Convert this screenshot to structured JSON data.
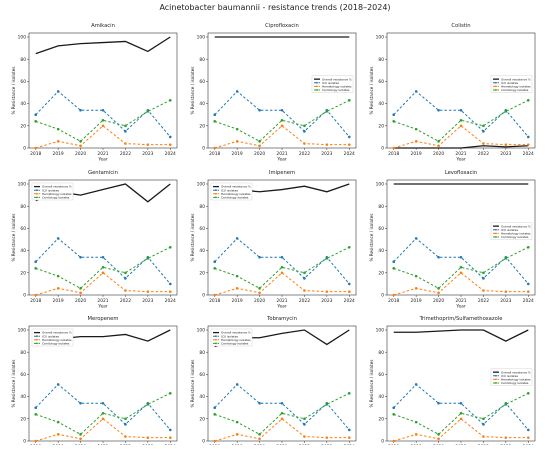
{
  "figure_title": "Acinetobacter baumannii - resistance trends (2018–2024)",
  "colors": {
    "overall": "#1a1a1a",
    "icu": "#1f77b4",
    "hematology": "#ff7f0e",
    "cardiology": "#2ca02c"
  },
  "chart_data": [
    {
      "type": "line",
      "title": "Amikacin",
      "xlabel": "Year",
      "ylabel": "% Resistance / isolates",
      "x": [
        2018,
        2019,
        2020,
        2021,
        2022,
        2023,
        2024
      ],
      "ylim": [
        0,
        100
      ],
      "yticks": [
        0,
        20,
        40,
        60,
        80,
        100
      ],
      "legend": "none",
      "series": [
        {
          "name": "Overall resistance %",
          "values": [
            85,
            92,
            94,
            95,
            96,
            87,
            100
          ]
        },
        {
          "name": "ICU isolates",
          "values": [
            30,
            51,
            34,
            34,
            15,
            34,
            10
          ]
        },
        {
          "name": "Hematology isolates",
          "values": [
            0,
            6,
            2,
            20,
            4,
            3,
            3
          ]
        },
        {
          "name": "Cardiology isolates",
          "values": [
            24,
            17,
            6,
            25,
            20,
            33,
            43
          ]
        }
      ]
    },
    {
      "type": "line",
      "title": "Ciprofloxacin",
      "xlabel": "Year",
      "ylabel": "% Resistance / isolates",
      "x": [
        2018,
        2019,
        2020,
        2021,
        2022,
        2023,
        2024
      ],
      "ylim": [
        0,
        100
      ],
      "yticks": [
        0,
        20,
        40,
        60,
        80,
        100
      ],
      "legend": "center-right",
      "series": [
        {
          "name": "Overall resistance %",
          "values": [
            100,
            100,
            100,
            100,
            100,
            100,
            100
          ]
        },
        {
          "name": "ICU isolates",
          "values": [
            30,
            51,
            34,
            34,
            15,
            34,
            10
          ]
        },
        {
          "name": "Hematology isolates",
          "values": [
            0,
            6,
            2,
            20,
            4,
            3,
            3
          ]
        },
        {
          "name": "Cardiology isolates",
          "values": [
            24,
            17,
            6,
            25,
            20,
            33,
            43
          ]
        }
      ]
    },
    {
      "type": "line",
      "title": "Colistin",
      "xlabel": "Year",
      "ylabel": "% Resistance / isolates",
      "x": [
        2018,
        2019,
        2020,
        2021,
        2022,
        2023,
        2024
      ],
      "ylim": [
        0,
        100
      ],
      "yticks": [
        0,
        20,
        40,
        60,
        80,
        100
      ],
      "legend": "center-right",
      "series": [
        {
          "name": "Overall resistance %",
          "values": [
            0,
            0,
            0,
            0,
            2,
            1,
            2
          ]
        },
        {
          "name": "ICU isolates",
          "values": [
            30,
            51,
            34,
            34,
            15,
            34,
            10
          ]
        },
        {
          "name": "Hematology isolates",
          "values": [
            0,
            6,
            2,
            20,
            4,
            3,
            3
          ]
        },
        {
          "name": "Cardiology isolates",
          "values": [
            24,
            17,
            6,
            25,
            20,
            33,
            43
          ]
        }
      ]
    },
    {
      "type": "line",
      "title": "Gentamicin",
      "xlabel": "Year",
      "ylabel": "% Resistance / isolates",
      "x": [
        2018,
        2019,
        2020,
        2021,
        2022,
        2023,
        2024
      ],
      "ylim": [
        0,
        100
      ],
      "yticks": [
        0,
        20,
        40,
        60,
        80,
        100
      ],
      "legend": "upper-left",
      "series": [
        {
          "name": "Overall resistance %",
          "values": [
            85,
            93,
            90,
            95,
            100,
            84,
            100
          ]
        },
        {
          "name": "ICU isolates",
          "values": [
            30,
            51,
            34,
            34,
            15,
            34,
            10
          ]
        },
        {
          "name": "Hematology isolates",
          "values": [
            0,
            6,
            2,
            20,
            4,
            3,
            3
          ]
        },
        {
          "name": "Cardiology isolates",
          "values": [
            24,
            17,
            6,
            25,
            20,
            33,
            43
          ]
        }
      ]
    },
    {
      "type": "line",
      "title": "Imipenem",
      "xlabel": "Year",
      "ylabel": "% Resistance / isolates",
      "x": [
        2018,
        2019,
        2020,
        2021,
        2022,
        2023,
        2024
      ],
      "ylim": [
        0,
        100
      ],
      "yticks": [
        0,
        20,
        40,
        60,
        80,
        100
      ],
      "legend": "upper-left",
      "series": [
        {
          "name": "Overall resistance %",
          "values": [
            93,
            95,
            93,
            95,
            98,
            93,
            100
          ]
        },
        {
          "name": "ICU isolates",
          "values": [
            30,
            51,
            34,
            34,
            15,
            34,
            10
          ]
        },
        {
          "name": "Hematology isolates",
          "values": [
            0,
            6,
            2,
            20,
            4,
            3,
            3
          ]
        },
        {
          "name": "Cardiology isolates",
          "values": [
            24,
            17,
            6,
            25,
            20,
            33,
            43
          ]
        }
      ]
    },
    {
      "type": "line",
      "title": "Levofloxacin",
      "xlabel": "Year",
      "ylabel": "% Resistance / isolates",
      "x": [
        2018,
        2019,
        2020,
        2021,
        2022,
        2023,
        2024
      ],
      "ylim": [
        0,
        100
      ],
      "yticks": [
        0,
        20,
        40,
        60,
        80,
        100
      ],
      "legend": "center-right",
      "series": [
        {
          "name": "Overall resistance %",
          "values": [
            100,
            100,
            100,
            100,
            100,
            100,
            100
          ]
        },
        {
          "name": "ICU isolates",
          "values": [
            30,
            51,
            34,
            34,
            15,
            34,
            10
          ]
        },
        {
          "name": "Hematology isolates",
          "values": [
            0,
            6,
            2,
            20,
            4,
            3,
            3
          ]
        },
        {
          "name": "Cardiology isolates",
          "values": [
            24,
            17,
            6,
            25,
            20,
            33,
            43
          ]
        }
      ]
    },
    {
      "type": "line",
      "title": "Meropenem",
      "xlabel": "Year",
      "ylabel": "% Resistance / isolates",
      "x": [
        2018,
        2019,
        2020,
        2021,
        2022,
        2023,
        2024
      ],
      "ylim": [
        0,
        100
      ],
      "yticks": [
        0,
        20,
        40,
        60,
        80,
        100
      ],
      "legend": "upper-left",
      "series": [
        {
          "name": "Overall resistance %",
          "values": [
            93,
            92,
            94,
            94,
            96,
            90,
            100
          ]
        },
        {
          "name": "ICU isolates",
          "values": [
            30,
            51,
            34,
            34,
            15,
            34,
            10
          ]
        },
        {
          "name": "Hematology isolates",
          "values": [
            0,
            6,
            2,
            20,
            4,
            3,
            3
          ]
        },
        {
          "name": "Cardiology isolates",
          "values": [
            24,
            17,
            6,
            25,
            20,
            33,
            43
          ]
        }
      ]
    },
    {
      "type": "line",
      "title": "Tobramycin",
      "xlabel": "Year",
      "ylabel": "% Resistance / isolates",
      "x": [
        2018,
        2019,
        2020,
        2021,
        2022,
        2023,
        2024
      ],
      "ylim": [
        0,
        100
      ],
      "yticks": [
        0,
        20,
        40,
        60,
        80,
        100
      ],
      "legend": "upper-left",
      "series": [
        {
          "name": "Overall resistance %",
          "values": [
            85,
            93,
            93,
            97,
            100,
            87,
            100
          ]
        },
        {
          "name": "ICU isolates",
          "values": [
            30,
            51,
            34,
            34,
            15,
            34,
            10
          ]
        },
        {
          "name": "Hematology isolates",
          "values": [
            0,
            6,
            2,
            20,
            4,
            3,
            3
          ]
        },
        {
          "name": "Cardiology isolates",
          "values": [
            24,
            17,
            6,
            25,
            20,
            33,
            43
          ]
        }
      ]
    },
    {
      "type": "line",
      "title": "Trimethoprim/Sulfamethoxazole",
      "xlabel": "Year",
      "ylabel": "% Resistance / isolates",
      "x": [
        2018,
        2019,
        2020,
        2021,
        2022,
        2023,
        2024
      ],
      "ylim": [
        0,
        100
      ],
      "yticks": [
        0,
        20,
        40,
        60,
        80,
        100
      ],
      "legend": "center-right",
      "series": [
        {
          "name": "Overall resistance %",
          "values": [
            98,
            98,
            99,
            100,
            100,
            90,
            100
          ]
        },
        {
          "name": "ICU isolates",
          "values": [
            30,
            51,
            34,
            34,
            15,
            34,
            10
          ]
        },
        {
          "name": "Hematology isolates",
          "values": [
            0,
            6,
            2,
            20,
            4,
            3,
            3
          ]
        },
        {
          "name": "Cardiology isolates",
          "values": [
            24,
            17,
            6,
            25,
            20,
            33,
            43
          ]
        }
      ]
    }
  ]
}
